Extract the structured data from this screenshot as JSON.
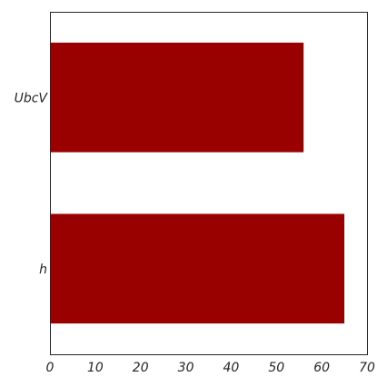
{
  "chart_data": {
    "type": "bar",
    "orientation": "horizontal",
    "categories": [
      "UbcV",
      "h"
    ],
    "values": [
      56,
      65
    ],
    "xlim": [
      0,
      70
    ],
    "x_ticks": [
      0,
      10,
      20,
      30,
      40,
      50,
      60,
      70
    ],
    "bar_color": "#990000",
    "grid": false,
    "legend": "none",
    "title": "",
    "xlabel": "",
    "ylabel": ""
  }
}
